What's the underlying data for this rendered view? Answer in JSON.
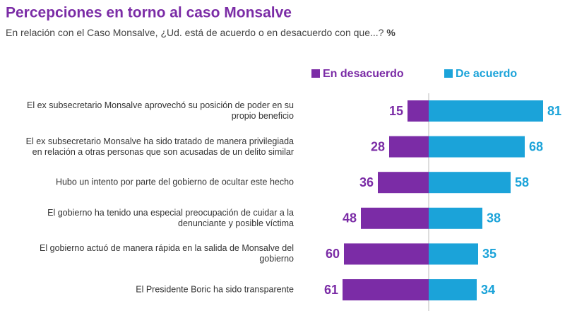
{
  "chart_data": {
    "type": "diverging-bar",
    "title": "Percepciones en torno al caso Monsalve",
    "subtitle": "En relación con el Caso Monsalve, ¿Ud. está de acuerdo o en desacuerdo con que...?",
    "unit": "%",
    "categories": [
      "El ex subsecretario Monsalve aprovechó su posición de poder en su propio beneficio",
      "El ex subsecretario Monsalve ha sido tratado de manera privilegiada en relación a otras personas que son acusadas de un delito similar",
      "Hubo un intento por parte del gobierno de ocultar este hecho",
      "El gobierno ha tenido una especial preocupación de cuidar a la denunciante y posible víctima",
      "El gobierno actuó de manera rápida en la salida de Monsalve del gobierno",
      "El Presidente Boric ha sido transparente"
    ],
    "series": [
      {
        "name": "En desacuerdo",
        "color": "#7b2ca6",
        "values": [
          15,
          28,
          36,
          48,
          60,
          61
        ]
      },
      {
        "name": "De acuerdo",
        "color": "#1ba3d9",
        "values": [
          81,
          68,
          58,
          38,
          35,
          34
        ]
      }
    ]
  }
}
